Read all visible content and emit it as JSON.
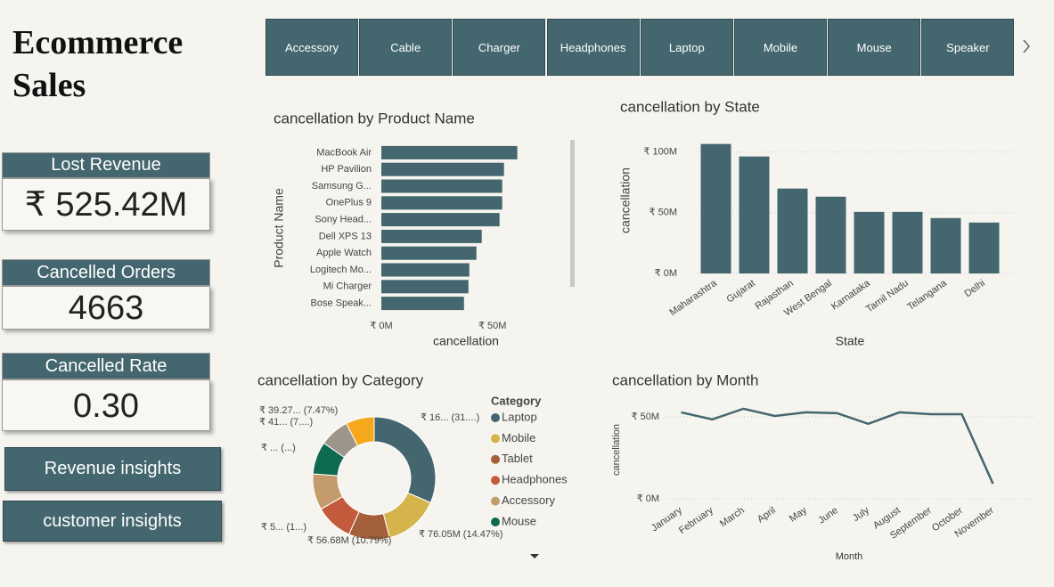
{
  "header": {
    "title": "Ecommerce Sales"
  },
  "filters": [
    "Accessory",
    "Cable",
    "Charger",
    "Headphones",
    "Laptop",
    "Mobile",
    "Mouse",
    "Speaker"
  ],
  "kpis": [
    {
      "label": "Lost Revenue",
      "value": "₹ 525.42M"
    },
    {
      "label": "Cancelled Orders",
      "value": "4663"
    },
    {
      "label": "Cancelled Rate",
      "value": "0.30"
    }
  ],
  "buttons": [
    "Revenue insights",
    "customer insights"
  ],
  "chart_data": [
    {
      "type": "hbar",
      "title": "cancellation by Product Name",
      "x_label": "cancellation",
      "y_label": "Product Name",
      "categories": [
        "MacBook Air",
        "HP Pavilion",
        "Samsung G...",
        "OnePlus 9",
        "Sony Head...",
        "Dell XPS 13",
        "Apple Watch",
        "Logitech Mo...",
        "Mi Charger",
        "Bose Speak..."
      ],
      "values": [
        61.2,
        55.2,
        54.4,
        54.4,
        53.2,
        45.2,
        42.8,
        39.6,
        39.2,
        37.2
      ],
      "color": "#44666e",
      "xlim": [
        0,
        85
      ],
      "xticks": [
        {
          "value": 0,
          "label": "₹ 0M"
        },
        {
          "value": 50,
          "label": "₹ 50M"
        }
      ],
      "grid": false
    },
    {
      "type": "bar",
      "title": "cancellation by State",
      "x_label": "State",
      "y_label": "cancellation",
      "categories": [
        "Maharashtra",
        "Gujarat",
        "Rajasthan",
        "West Bengal",
        "Karnataka",
        "Tamil Nadu",
        "Telangana",
        "Delhi"
      ],
      "values": [
        106.6,
        96.3,
        69.9,
        63.2,
        50.7,
        50.7,
        45.6,
        41.9
      ],
      "color": "#44666e",
      "ylim": [
        0,
        110
      ],
      "yticks": [
        {
          "value": 0,
          "label": "₹ 0M"
        },
        {
          "value": 50,
          "label": "₹ 50M"
        },
        {
          "value": 100,
          "label": "₹ 100M"
        }
      ],
      "grid": true
    },
    {
      "type": "donut",
      "title": "cancellation by Category",
      "legend_title": "Category",
      "categories": [
        "Laptop",
        "Mobile",
        "Tablet",
        "Headphones",
        "Accessory",
        "Mouse",
        null,
        null
      ],
      "values": [
        165.5,
        76.05,
        56.68,
        52,
        50,
        45,
        41,
        39.27
      ],
      "value_labels": [
        "₹ 16... (31....)",
        "₹ 76.05M (14.47%)",
        "₹ 56.68M (10.79%)",
        "₹ 5... (1...)",
        null,
        "₹ ... (...)",
        "₹ 41... (7....)",
        "₹ 39.27... (7.47%)"
      ],
      "colors": [
        "#44666e",
        "#d5b44b",
        "#a4603a",
        "#c35a3c",
        "#c49b6d",
        "#0f6b50",
        "#9e958a",
        "#f5a81c"
      ]
    },
    {
      "type": "line",
      "title": "cancellation by Month",
      "x_label": "Month",
      "y_label": "cancellation",
      "categories": [
        "January",
        "February",
        "March",
        "April",
        "May",
        "June",
        "July",
        "August",
        "September",
        "October",
        "November"
      ],
      "values": [
        52.7,
        48.4,
        54.9,
        50.5,
        52.7,
        52.2,
        45.7,
        52.7,
        51.6,
        51.6,
        9.2
      ],
      "color": "#44666e",
      "ylim": [
        0,
        57
      ],
      "yticks": [
        {
          "value": 0,
          "label": "₹ 0M"
        },
        {
          "value": 50,
          "label": "₹ 50M"
        }
      ],
      "grid": true
    }
  ]
}
